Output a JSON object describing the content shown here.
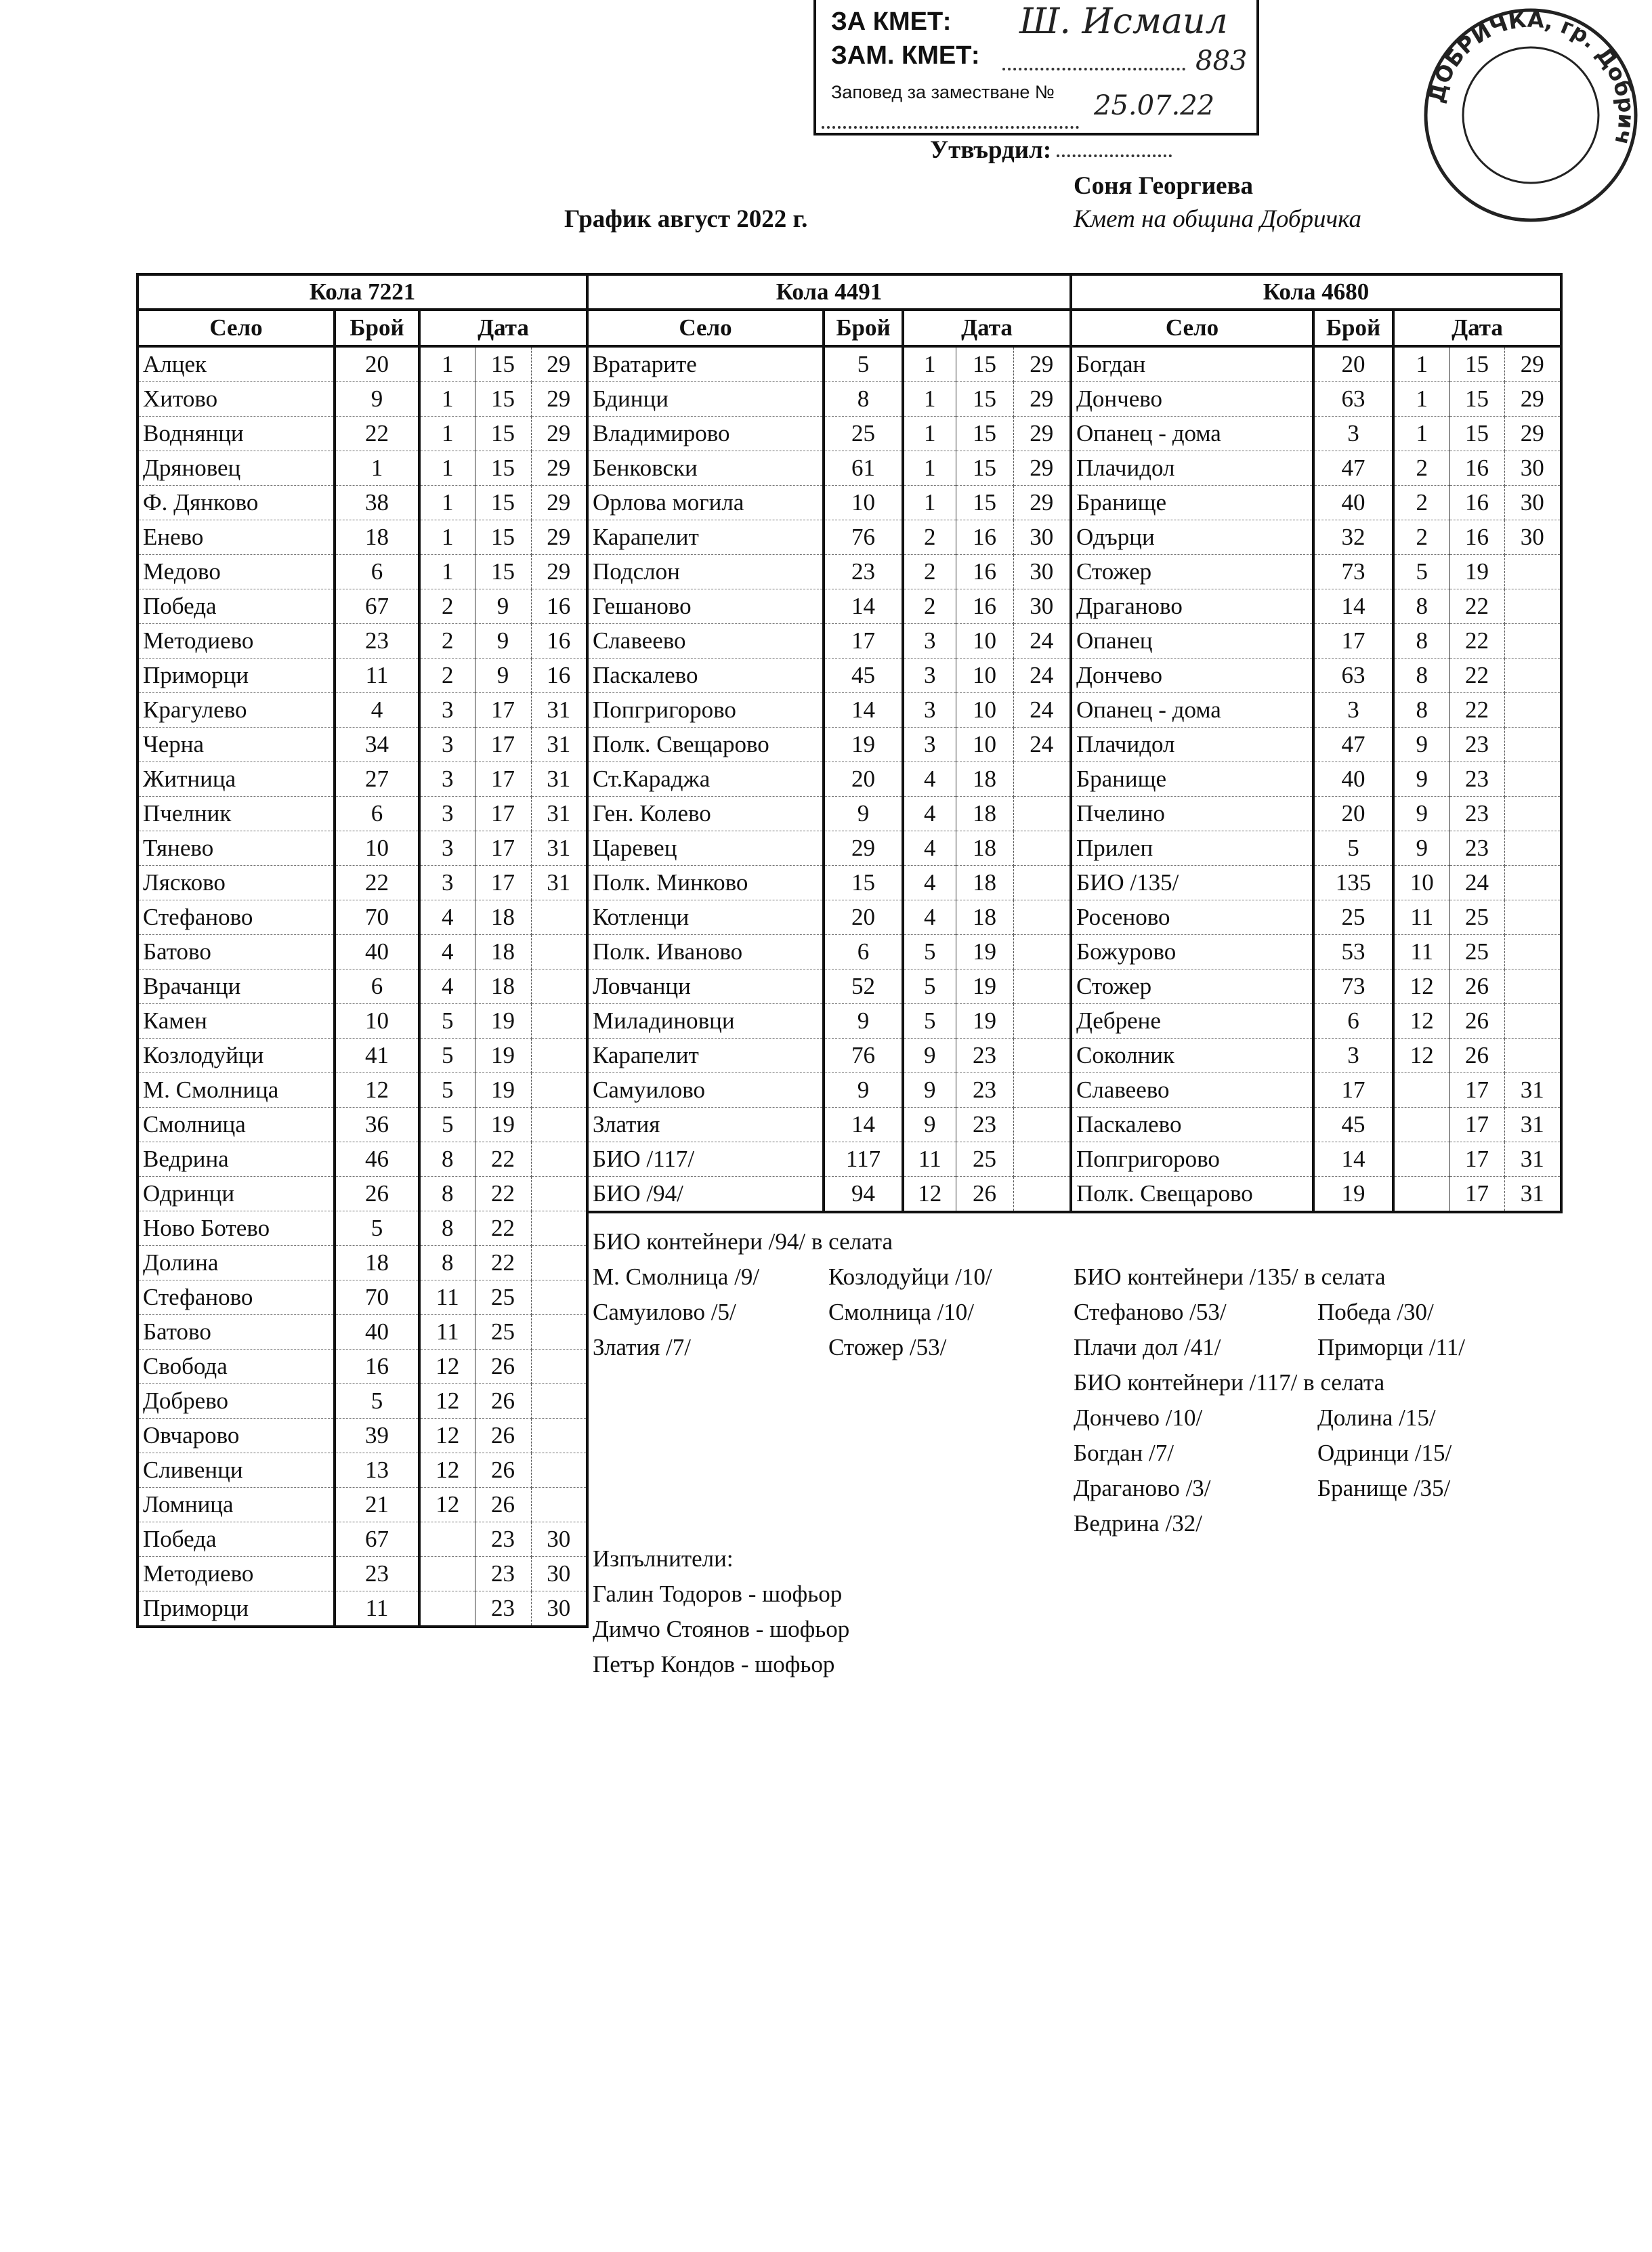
{
  "approval_stamp": {
    "line1": "ЗА КМЕТ:",
    "line2": "ЗАМ. КМЕТ:",
    "line3": "Заповед за заместване №",
    "handwritten_signature": "Ш. Исмаил",
    "handwritten_number": "883",
    "handwritten_date": "25.07.22"
  },
  "approved_label": "Утвърдил:",
  "approver_name": "Соня Георгиева",
  "approver_title": "Кмет на община Добричка",
  "document_title": "График август 2022 г.",
  "seal_text": "ДОБРИЧКА, гр. Добрич",
  "schedule": {
    "vehicles": [
      {
        "title": "Кола 7221",
        "headers": {
          "village": "Село",
          "count": "Брой",
          "date": "Дата"
        },
        "rows": [
          [
            "Алцек",
            "20",
            "1",
            "15",
            "29"
          ],
          [
            "Хитово",
            "9",
            "1",
            "15",
            "29"
          ],
          [
            "Воднянци",
            "22",
            "1",
            "15",
            "29"
          ],
          [
            "Дряновец",
            "1",
            "1",
            "15",
            "29"
          ],
          [
            "Ф. Дянково",
            "38",
            "1",
            "15",
            "29"
          ],
          [
            "Енево",
            "18",
            "1",
            "15",
            "29"
          ],
          [
            "Медово",
            "6",
            "1",
            "15",
            "29"
          ],
          [
            "Победа",
            "67",
            "2",
            "9",
            "16"
          ],
          [
            "Методиево",
            "23",
            "2",
            "9",
            "16"
          ],
          [
            "Приморци",
            "11",
            "2",
            "9",
            "16"
          ],
          [
            "Крагулево",
            "4",
            "3",
            "17",
            "31"
          ],
          [
            "Черна",
            "34",
            "3",
            "17",
            "31"
          ],
          [
            "Житница",
            "27",
            "3",
            "17",
            "31"
          ],
          [
            "Пчелник",
            "6",
            "3",
            "17",
            "31"
          ],
          [
            "Тянево",
            "10",
            "3",
            "17",
            "31"
          ],
          [
            "Лясково",
            "22",
            "3",
            "17",
            "31"
          ],
          [
            "Стефаново",
            "70",
            "4",
            "18",
            ""
          ],
          [
            "Батово",
            "40",
            "4",
            "18",
            ""
          ],
          [
            "Врачанци",
            "6",
            "4",
            "18",
            ""
          ],
          [
            "Камен",
            "10",
            "5",
            "19",
            ""
          ],
          [
            "Козлодуйци",
            "41",
            "5",
            "19",
            ""
          ],
          [
            "М. Смолница",
            "12",
            "5",
            "19",
            ""
          ],
          [
            "Смолница",
            "36",
            "5",
            "19",
            ""
          ],
          [
            "Ведрина",
            "46",
            "8",
            "22",
            ""
          ],
          [
            "Одринци",
            "26",
            "8",
            "22",
            ""
          ],
          [
            "Ново Ботево",
            "5",
            "8",
            "22",
            ""
          ],
          [
            "Долина",
            "18",
            "8",
            "22",
            ""
          ],
          [
            "Стефаново",
            "70",
            "11",
            "25",
            ""
          ],
          [
            "Батово",
            "40",
            "11",
            "25",
            ""
          ],
          [
            "Свобода",
            "16",
            "12",
            "26",
            ""
          ],
          [
            "Добрево",
            "5",
            "12",
            "26",
            ""
          ],
          [
            "Овчарово",
            "39",
            "12",
            "26",
            ""
          ],
          [
            "Сливенци",
            "13",
            "12",
            "26",
            ""
          ],
          [
            "Ломница",
            "21",
            "12",
            "26",
            ""
          ],
          [
            "Победа",
            "67",
            "",
            "23",
            "30"
          ],
          [
            "Методиево",
            "23",
            "",
            "23",
            "30"
          ],
          [
            "Приморци",
            "11",
            "",
            "23",
            "30"
          ]
        ]
      },
      {
        "title": "Кола 4491",
        "headers": {
          "village": "Село",
          "count": "Брой",
          "date": "Дата"
        },
        "rows": [
          [
            "Вратарите",
            "5",
            "1",
            "15",
            "29"
          ],
          [
            "Бдинци",
            "8",
            "1",
            "15",
            "29"
          ],
          [
            "Владимирово",
            "25",
            "1",
            "15",
            "29"
          ],
          [
            "Бенковски",
            "61",
            "1",
            "15",
            "29"
          ],
          [
            "Орлова могила",
            "10",
            "1",
            "15",
            "29"
          ],
          [
            "Карапелит",
            "76",
            "2",
            "16",
            "30"
          ],
          [
            "Подслон",
            "23",
            "2",
            "16",
            "30"
          ],
          [
            "Гешаново",
            "14",
            "2",
            "16",
            "30"
          ],
          [
            "Славеево",
            "17",
            "3",
            "10",
            "24"
          ],
          [
            "Паскалево",
            "45",
            "3",
            "10",
            "24"
          ],
          [
            "Попгригорово",
            "14",
            "3",
            "10",
            "24"
          ],
          [
            "Полк. Свещарово",
            "19",
            "3",
            "10",
            "24"
          ],
          [
            "Ст.Караджа",
            "20",
            "4",
            "18",
            ""
          ],
          [
            "Ген. Колево",
            "9",
            "4",
            "18",
            ""
          ],
          [
            "Царевец",
            "29",
            "4",
            "18",
            ""
          ],
          [
            "Полк. Минково",
            "15",
            "4",
            "18",
            ""
          ],
          [
            "Котленци",
            "20",
            "4",
            "18",
            ""
          ],
          [
            "Полк. Иваново",
            "6",
            "5",
            "19",
            ""
          ],
          [
            "Ловчанци",
            "52",
            "5",
            "19",
            ""
          ],
          [
            "Миладиновци",
            "9",
            "5",
            "19",
            ""
          ],
          [
            "Карапелит",
            "76",
            "9",
            "23",
            ""
          ],
          [
            "Самуилово",
            "9",
            "9",
            "23",
            ""
          ],
          [
            "Златия",
            "14",
            "9",
            "23",
            ""
          ],
          [
            "БИО /117/",
            "117",
            "11",
            "25",
            ""
          ],
          [
            "БИО /94/",
            "94",
            "12",
            "26",
            ""
          ]
        ]
      },
      {
        "title": "Кола 4680",
        "headers": {
          "village": "Село",
          "count": "Брой",
          "date": "Дата"
        },
        "rows": [
          [
            "Богдан",
            "20",
            "1",
            "15",
            "29"
          ],
          [
            "Дончево",
            "63",
            "1",
            "15",
            "29"
          ],
          [
            "Опанец - дома",
            "3",
            "1",
            "15",
            "29"
          ],
          [
            "Плачидол",
            "47",
            "2",
            "16",
            "30"
          ],
          [
            "Бранище",
            "40",
            "2",
            "16",
            "30"
          ],
          [
            "Одърци",
            "32",
            "2",
            "16",
            "30"
          ],
          [
            "Стожер",
            "73",
            "5",
            "19",
            ""
          ],
          [
            "Драганово",
            "14",
            "8",
            "22",
            ""
          ],
          [
            "Опанец",
            "17",
            "8",
            "22",
            ""
          ],
          [
            "Дончево",
            "63",
            "8",
            "22",
            ""
          ],
          [
            "Опанец - дома",
            "3",
            "8",
            "22",
            ""
          ],
          [
            "Плачидол",
            "47",
            "9",
            "23",
            ""
          ],
          [
            "Бранище",
            "40",
            "9",
            "23",
            ""
          ],
          [
            "Пчелино",
            "20",
            "9",
            "23",
            ""
          ],
          [
            "Прилеп",
            "5",
            "9",
            "23",
            ""
          ],
          [
            "БИО /135/",
            "135",
            "10",
            "24",
            ""
          ],
          [
            "Росеново",
            "25",
            "11",
            "25",
            ""
          ],
          [
            "Божурово",
            "53",
            "11",
            "25",
            ""
          ],
          [
            "Стожер",
            "73",
            "12",
            "26",
            ""
          ],
          [
            "Дебрене",
            "6",
            "12",
            "26",
            ""
          ],
          [
            "Соколник",
            "3",
            "12",
            "26",
            ""
          ],
          [
            "Славеево",
            "17",
            "",
            "17",
            "31"
          ],
          [
            "Паскалево",
            "45",
            "",
            "17",
            "31"
          ],
          [
            "Попгригорово",
            "14",
            "",
            "17",
            "31"
          ],
          [
            "Полк. Свещарово",
            "19",
            "",
            "17",
            "31"
          ]
        ]
      }
    ]
  },
  "notes": {
    "bio94": {
      "heading": "БИО контейнери /94/ в селата",
      "items": [
        "М. Смолница /9/",
        "Козлодуйци /10/",
        "Самуилово /5/",
        "Смолница /10/",
        "Златия /7/",
        "Стожер /53/"
      ]
    },
    "bio135": {
      "heading": "БИО контейнери /135/ в селата",
      "items": [
        "Стефаново /53/",
        "Победа /30/",
        "Плачи дол /41/",
        "Приморци /11/"
      ]
    },
    "bio117": {
      "heading": "БИО контейнери /117/ в селата",
      "items": [
        "Дончево /10/",
        "Долина /15/",
        "Богдан /7/",
        "Одринци /15/",
        "Драганово /3/",
        "Бранище /35/",
        "Ведрина /32/"
      ]
    },
    "executors": {
      "heading": "Изпълнители:",
      "items": [
        "Галин Тодоров - шофьор",
        "Димчо Стоянов - шофьор",
        "Петър Кондов - шофьор"
      ]
    }
  }
}
